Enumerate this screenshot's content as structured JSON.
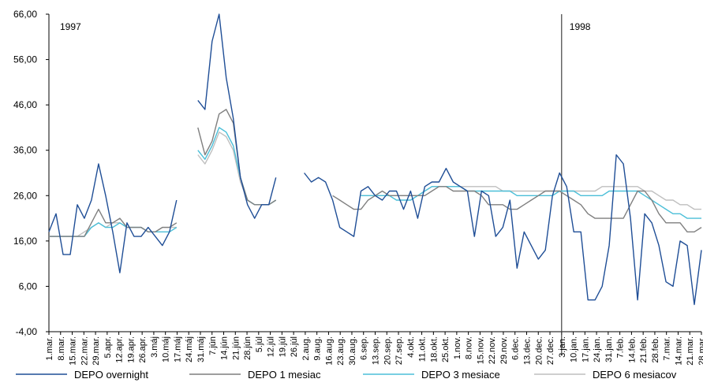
{
  "chart_data": {
    "type": "line",
    "ylim": [
      -4,
      66
    ],
    "yticks": [
      "-4,00",
      "6,00",
      "16,00",
      "26,00",
      "36,00",
      "46,00",
      "56,00",
      "66,00"
    ],
    "ytick_values": [
      -4,
      6,
      16,
      26,
      36,
      46,
      56,
      66
    ],
    "x_labels": [
      "1.mar.",
      "8.mar.",
      "15.mar.",
      "22.mar.",
      "29.mar.",
      "5.apr.",
      "12.apr.",
      "19.apr.",
      "26.apr.",
      "3.máj",
      "10.máj",
      "17.máj",
      "24.máj",
      "31.máj",
      "7.jún",
      "14.jún",
      "21.jún",
      "28.jún",
      "5.júl",
      "12.júl",
      "19.júl",
      "26.júl",
      "2.aug.",
      "9.aug.",
      "16.aug.",
      "23.aug.",
      "30.aug.",
      "6.sep.",
      "13.sep.",
      "20.sep.",
      "27.sep.",
      "4.okt.",
      "11.okt.",
      "18.okt.",
      "25.okt.",
      "1.nov.",
      "8.nov.",
      "15.nov.",
      "22.nov.",
      "29.nov.",
      "6.dec.",
      "13.dec.",
      "20.dec.",
      "27.dec.",
      "3.jan.",
      "10.jan.",
      "17.jan.",
      "24.jan.",
      "31.jan.",
      "7.feb.",
      "14.feb.",
      "21.feb.",
      "28.feb.",
      "7.mar.",
      "14.mar.",
      "21.mar.",
      "28.mar."
    ],
    "year_labels": [
      "1997",
      "1998"
    ],
    "year_divider_index": 44,
    "series": [
      {
        "name": "DEPO overnight",
        "color": "#1f4e96",
        "values": [
          18,
          22,
          13,
          13,
          24,
          21,
          25,
          33,
          26,
          18,
          9,
          20,
          17,
          17,
          19,
          17,
          15,
          18,
          25,
          null,
          null,
          47,
          45,
          60,
          66,
          52,
          43,
          30,
          24,
          21,
          24,
          24,
          30,
          null,
          33,
          null,
          31,
          29,
          30,
          29,
          25,
          19,
          18,
          17,
          27,
          28,
          26,
          25,
          27,
          27,
          23,
          27,
          21,
          28,
          29,
          29,
          32,
          29,
          28,
          27,
          17,
          27,
          26,
          17,
          19,
          25,
          10,
          18,
          15,
          12,
          14,
          26,
          31,
          28,
          18,
          18,
          3,
          3,
          6,
          15,
          35,
          33,
          21,
          3,
          22,
          20,
          15,
          7,
          6,
          16,
          15,
          2,
          14
        ]
      },
      {
        "name": "DEPO 1 mesiac",
        "color": "#7f7f7f",
        "values": [
          17,
          17,
          17,
          17,
          17,
          17,
          20,
          23,
          20,
          20,
          21,
          19,
          19,
          19,
          18,
          18,
          19,
          19,
          20,
          null,
          null,
          41,
          35,
          38,
          44,
          45,
          42,
          30,
          25,
          24,
          24,
          24,
          25,
          null,
          null,
          null,
          null,
          null,
          null,
          null,
          26,
          25,
          24,
          23,
          23,
          25,
          26,
          27,
          26,
          26,
          26,
          26,
          26,
          26,
          27,
          28,
          28,
          27,
          27,
          27,
          27,
          26,
          24,
          24,
          24,
          23,
          23,
          24,
          25,
          26,
          27,
          27,
          27,
          26,
          25,
          24,
          22,
          21,
          21,
          21,
          21,
          21,
          24,
          27,
          27,
          25,
          22,
          20,
          20,
          20,
          18,
          18,
          19
        ]
      },
      {
        "name": "DEPO 3 mesiace",
        "color": "#4bbfd8",
        "values": [
          17,
          17,
          17,
          17,
          17,
          17,
          19,
          20,
          19,
          19,
          20,
          19,
          19,
          19,
          18,
          18,
          18,
          18,
          19,
          null,
          null,
          36,
          34,
          37,
          41,
          40,
          37,
          30,
          25,
          24,
          24,
          24,
          25,
          null,
          null,
          null,
          null,
          null,
          null,
          null,
          null,
          null,
          null,
          null,
          26,
          26,
          26,
          26,
          26,
          25,
          25,
          25,
          26,
          27,
          28,
          28,
          28,
          28,
          28,
          27,
          27,
          27,
          27,
          27,
          27,
          27,
          26,
          26,
          26,
          26,
          26,
          26,
          27,
          27,
          27,
          26,
          26,
          26,
          26,
          27,
          27,
          27,
          27,
          27,
          26,
          25,
          24,
          23,
          22,
          22,
          21,
          21,
          21
        ]
      },
      {
        "name": "DEPO 6 mesiacov",
        "color": "#bfbfbf",
        "values": [
          17,
          17,
          17,
          17,
          17,
          18,
          19,
          20,
          19,
          20,
          20,
          19,
          19,
          19,
          18,
          18,
          19,
          19,
          19,
          null,
          null,
          35,
          33,
          36,
          40,
          39,
          36,
          29,
          25,
          24,
          24,
          24,
          25,
          null,
          null,
          null,
          null,
          null,
          null,
          null,
          null,
          null,
          null,
          null,
          26,
          26,
          26,
          26,
          26,
          26,
          26,
          26,
          26,
          27,
          28,
          28,
          28,
          28,
          28,
          28,
          28,
          28,
          28,
          28,
          27,
          27,
          27,
          27,
          27,
          27,
          27,
          27,
          27,
          27,
          27,
          27,
          27,
          27,
          28,
          28,
          28,
          28,
          28,
          28,
          27,
          27,
          26,
          25,
          25,
          24,
          24,
          23,
          23
        ]
      }
    ]
  }
}
